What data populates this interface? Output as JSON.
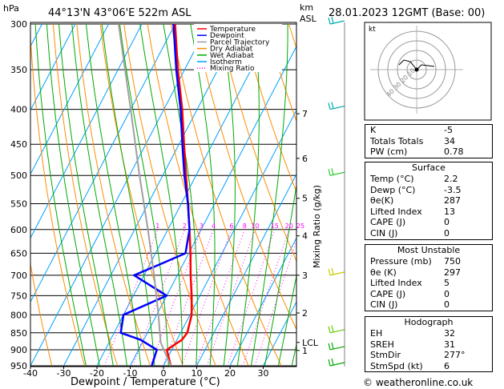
{
  "header": {
    "location": "44°13'N  43°06'E  522m  ASL",
    "datetime": "28.01.2023  12GMT  (Base: 00)",
    "pressure_unit": "hPa",
    "height_unit_km": "km",
    "height_unit_asl": "ASL"
  },
  "chart_data": {
    "type": "line",
    "title": "",
    "xlabel": "Dewpoint / Temperature (°C)",
    "ylabel": "",
    "ylabel_right": "Mixing Ratio (g/kg)",
    "xlim": [
      -40,
      40
    ],
    "ylim": [
      950,
      300
    ],
    "y_scale": "log",
    "x_ticks": [
      -40,
      -30,
      -20,
      -10,
      0,
      10,
      20,
      30
    ],
    "pressure_levels": [
      300,
      350,
      400,
      450,
      500,
      550,
      600,
      650,
      700,
      750,
      800,
      850,
      900,
      950
    ],
    "km_ticks": [
      {
        "p": 406,
        "label": "7"
      },
      {
        "p": 472,
        "label": "6"
      },
      {
        "p": 540,
        "label": "5"
      },
      {
        "p": 613,
        "label": "4"
      },
      {
        "p": 700,
        "label": "3"
      },
      {
        "p": 795,
        "label": "2"
      },
      {
        "p": 878,
        "label": "LCL"
      },
      {
        "p": 902,
        "label": "1"
      }
    ],
    "mixing_ratio_labels": [
      "1",
      "2",
      "3",
      "4",
      "6",
      "8",
      "10",
      "15",
      "20",
      "25"
    ],
    "legend": {
      "placement": "top-left",
      "entries": [
        {
          "name": "Temperature",
          "color": "#ff0000",
          "style": "solid"
        },
        {
          "name": "Dewpoint",
          "color": "#0000ff",
          "style": "solid"
        },
        {
          "name": "Parcel Trajectory",
          "color": "#a0a0a0",
          "style": "solid"
        },
        {
          "name": "Dry Adiabat",
          "color": "#ff8c00",
          "style": "solid"
        },
        {
          "name": "Wet Adiabat",
          "color": "#00aa00",
          "style": "solid"
        },
        {
          "name": "Isotherm",
          "color": "#00a0ff",
          "style": "solid"
        },
        {
          "name": "Mixing Ratio",
          "color": "#ff00ff",
          "style": "dotted"
        }
      ]
    },
    "series": [
      {
        "name": "Temperature",
        "color": "#ff0000",
        "points": [
          {
            "p": 950,
            "t": 2.2
          },
          {
            "p": 900,
            "t": -1.5
          },
          {
            "p": 870,
            "t": 1.5
          },
          {
            "p": 850,
            "t": 2.0
          },
          {
            "p": 800,
            "t": 0.5
          },
          {
            "p": 750,
            "t": -2.5
          },
          {
            "p": 700,
            "t": -6.0
          },
          {
            "p": 650,
            "t": -9.5
          },
          {
            "p": 600,
            "t": -13.5
          },
          {
            "p": 550,
            "t": -18.0
          },
          {
            "p": 500,
            "t": -23.0
          },
          {
            "p": 450,
            "t": -28.5
          },
          {
            "p": 400,
            "t": -34.5
          },
          {
            "p": 350,
            "t": -42.0
          },
          {
            "p": 300,
            "t": -50.0
          }
        ]
      },
      {
        "name": "Dewpoint",
        "color": "#0000ff",
        "points": [
          {
            "p": 950,
            "t": -3.5
          },
          {
            "p": 900,
            "t": -4.5
          },
          {
            "p": 870,
            "t": -11.0
          },
          {
            "p": 850,
            "t": -18.0
          },
          {
            "p": 800,
            "t": -20.0
          },
          {
            "p": 750,
            "t": -10.0
          },
          {
            "p": 700,
            "t": -23.0
          },
          {
            "p": 675,
            "t": -17.0
          },
          {
            "p": 650,
            "t": -11.0
          },
          {
            "p": 600,
            "t": -13.5
          },
          {
            "p": 550,
            "t": -18.0
          },
          {
            "p": 500,
            "t": -23.5
          },
          {
            "p": 450,
            "t": -29.0
          },
          {
            "p": 400,
            "t": -35.0
          },
          {
            "p": 350,
            "t": -42.5
          },
          {
            "p": 300,
            "t": -50.5
          }
        ]
      },
      {
        "name": "Parcel Trajectory",
        "color": "#a0a0a0",
        "points": [
          {
            "p": 950,
            "t": 2.2
          },
          {
            "p": 878,
            "t": -4.5
          },
          {
            "p": 800,
            "t": -9.5
          },
          {
            "p": 700,
            "t": -17.0
          },
          {
            "p": 600,
            "t": -26.0
          },
          {
            "p": 500,
            "t": -37.0
          },
          {
            "p": 400,
            "t": -50.0
          },
          {
            "p": 300,
            "t": -67.0
          }
        ]
      }
    ]
  },
  "hodograph": {
    "label": "kt",
    "ring_labels": [
      "10",
      "20",
      "30",
      "40"
    ]
  },
  "indices": {
    "basic": [
      {
        "label": "K",
        "value": "-5"
      },
      {
        "label": "Totals Totals",
        "value": "34"
      },
      {
        "label": "PW (cm)",
        "value": "0.78"
      }
    ],
    "surface": {
      "title": "Surface",
      "rows": [
        {
          "label": "Temp (°C)",
          "value": "2.2"
        },
        {
          "label": "Dewp (°C)",
          "value": "-3.5"
        },
        {
          "label": "θe(K)",
          "value": "287"
        },
        {
          "label": "Lifted Index",
          "value": "13"
        },
        {
          "label": "CAPE (J)",
          "value": "0"
        },
        {
          "label": "CIN (J)",
          "value": "0"
        }
      ]
    },
    "most_unstable": {
      "title": "Most Unstable",
      "rows": [
        {
          "label": "Pressure (mb)",
          "value": "750"
        },
        {
          "label": "θe (K)",
          "value": "297"
        },
        {
          "label": "Lifted Index",
          "value": "5"
        },
        {
          "label": "CAPE (J)",
          "value": "0"
        },
        {
          "label": "CIN (J)",
          "value": "0"
        }
      ]
    },
    "hodograph_table": {
      "title": "Hodograph",
      "rows": [
        {
          "label": "EH",
          "value": "32"
        },
        {
          "label": "SREH",
          "value": "31"
        },
        {
          "label": "StmDir",
          "value": "277°"
        },
        {
          "label": "StmSpd (kt)",
          "value": "6"
        }
      ]
    }
  },
  "footer": {
    "copyright": "© weatheronline.co.uk"
  }
}
